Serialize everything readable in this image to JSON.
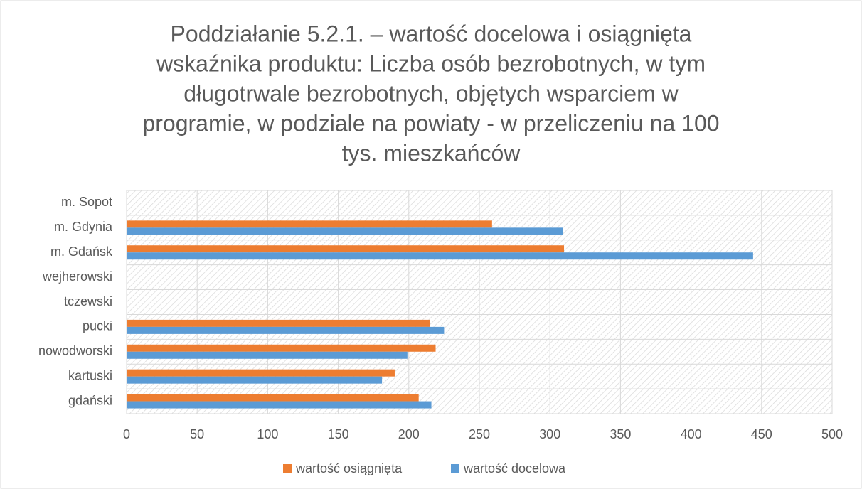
{
  "chart_data": {
    "type": "hbar",
    "title": [
      "Poddziałanie 5.2.1. – wartość docelowa i osiągnięta",
      "wskaźnika produktu: Liczba osób bezrobotnych, w tym",
      "długotrwale bezrobotnych, objętych wsparciem w",
      "programie, w podziale na powiaty - w przeliczeniu na 100",
      "tys. mieszkańców"
    ],
    "categories": [
      "gdański",
      "kartuski",
      "nowodworski",
      "pucki",
      "tczewski",
      "wejherowski",
      "m. Gdańsk",
      "m. Gdynia",
      "m. Sopot"
    ],
    "series": [
      {
        "name": "wartość osiągnięta",
        "color": "#ed7d31",
        "values": [
          207,
          190,
          219,
          215,
          0,
          0,
          310,
          259,
          0
        ]
      },
      {
        "name": "wartość docelowa",
        "color": "#5b9bd5",
        "values": [
          216,
          181,
          199,
          225,
          0,
          0,
          444,
          309,
          0
        ]
      }
    ],
    "xlim": [
      0,
      500
    ],
    "xticks": [
      0,
      50,
      100,
      150,
      200,
      250,
      300,
      350,
      400,
      450,
      500
    ],
    "grid": true,
    "legend": "bottom"
  }
}
